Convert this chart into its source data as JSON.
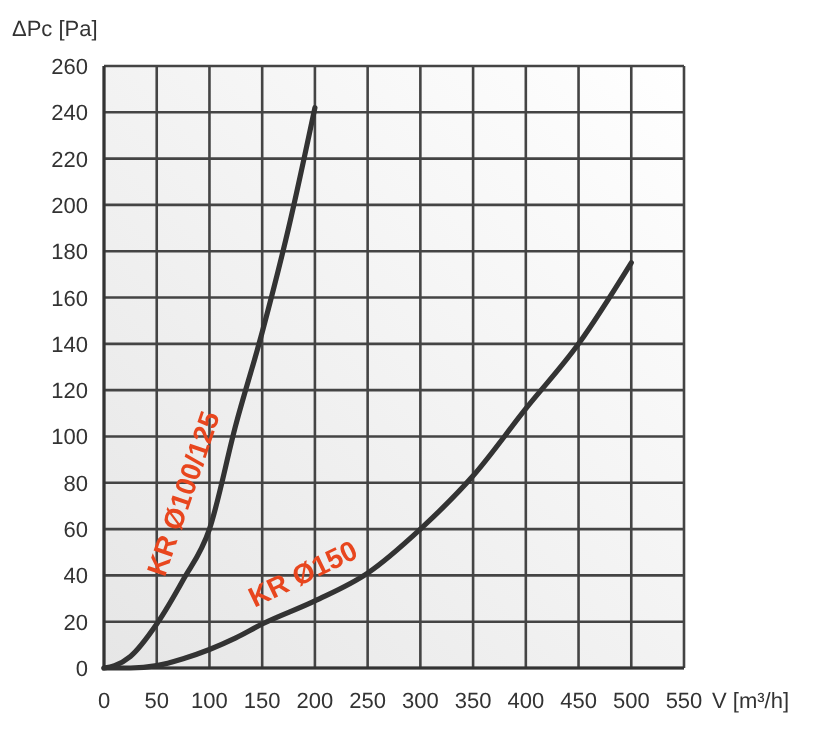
{
  "chart_data": {
    "type": "line",
    "xlabel": "V [m³/h]",
    "ylabel": "ΔPc [Pa]",
    "xlim": [
      0,
      550
    ],
    "xticks": [
      0,
      50,
      100,
      150,
      200,
      250,
      300,
      350,
      400,
      450,
      500,
      550
    ],
    "ylim": [
      0,
      260
    ],
    "yticks": [
      0,
      20,
      40,
      60,
      80,
      100,
      120,
      140,
      160,
      180,
      200,
      220,
      240,
      260
    ],
    "grid": true,
    "marker": "none",
    "line_style": "solid",
    "series": [
      {
        "name": "KR Ø100/125",
        "color": "#333333",
        "x": [
          0,
          10,
          25,
          50,
          75,
          100,
          125,
          150,
          175,
          200
        ],
        "values": [
          0,
          1,
          5,
          19,
          38,
          60,
          105,
          145,
          190,
          242
        ]
      },
      {
        "name": "KR Ø150",
        "color": "#333333",
        "x": [
          0,
          25,
          50,
          75,
          100,
          125,
          150,
          200,
          250,
          300,
          350,
          400,
          450,
          500
        ],
        "values": [
          0,
          0,
          1,
          4,
          8,
          13,
          19,
          29,
          41,
          60,
          83,
          112,
          140,
          175
        ]
      }
    ]
  }
}
